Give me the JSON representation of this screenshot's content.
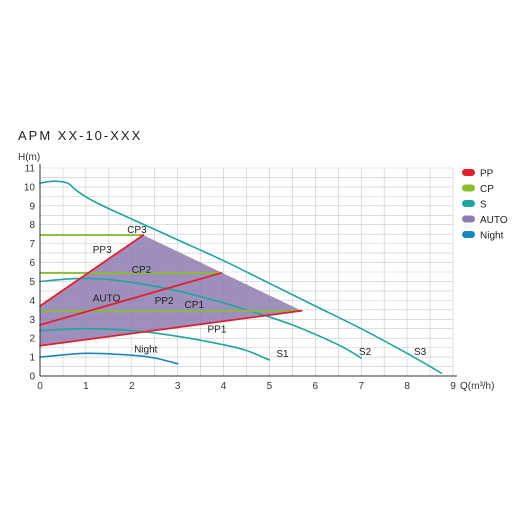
{
  "chart_data": {
    "type": "line",
    "title": "APM XX-10-XXX",
    "ylabel": "H(m)",
    "xlabel": "Q(m³/h)",
    "xlim": [
      0,
      9
    ],
    "ylim": [
      0,
      11
    ],
    "x_ticks": [
      "0",
      "1",
      "2",
      "3",
      "4",
      "5",
      "6",
      "7",
      "8",
      "9"
    ],
    "y_ticks": [
      "0",
      "1",
      "2",
      "3",
      "4",
      "5",
      "6",
      "7",
      "8",
      "9",
      "10",
      "11"
    ],
    "grid": true,
    "legend_position": "right",
    "colors": {
      "PP": "#e0202e",
      "CP": "#8cbd2e",
      "S": "#1fa5a0",
      "AUTO": "#8e7bb0",
      "Night": "#1a86bf"
    },
    "legend": [
      {
        "key": "PP",
        "label": "PP"
      },
      {
        "key": "CP",
        "label": "CP"
      },
      {
        "key": "S",
        "label": "S"
      },
      {
        "key": "AUTO",
        "label": "AUTO"
      },
      {
        "key": "Night",
        "label": "Night"
      }
    ],
    "auto_area": {
      "label": "AUTO",
      "points": [
        [
          0,
          3.7
        ],
        [
          2.25,
          7.45
        ],
        [
          5.7,
          3.45
        ],
        [
          0,
          1.6
        ]
      ]
    },
    "series": [
      {
        "name": "S3",
        "group": "S",
        "points": [
          [
            0,
            10.2
          ],
          [
            0.3,
            10.3
          ],
          [
            0.6,
            10.2
          ],
          [
            0.8,
            9.8
          ],
          [
            1.2,
            9.2
          ],
          [
            2,
            8.3
          ],
          [
            3,
            7.2
          ],
          [
            4,
            6.1
          ],
          [
            5,
            4.9
          ],
          [
            6,
            3.7
          ],
          [
            7,
            2.5
          ],
          [
            8,
            1.2
          ],
          [
            8.75,
            0.15
          ]
        ]
      },
      {
        "name": "S2",
        "group": "S",
        "points": [
          [
            0,
            5.0
          ],
          [
            0.8,
            5.15
          ],
          [
            1.5,
            5.1
          ],
          [
            2.5,
            4.75
          ],
          [
            3.5,
            4.2
          ],
          [
            4.5,
            3.5
          ],
          [
            5.5,
            2.7
          ],
          [
            6.5,
            1.65
          ],
          [
            7.0,
            0.95
          ]
        ]
      },
      {
        "name": "S1",
        "group": "S",
        "points": [
          [
            0,
            2.4
          ],
          [
            1,
            2.5
          ],
          [
            2,
            2.4
          ],
          [
            3,
            2.1
          ],
          [
            4,
            1.65
          ],
          [
            4.5,
            1.35
          ],
          [
            5.0,
            0.85
          ]
        ]
      },
      {
        "name": "Night",
        "group": "Night",
        "points": [
          [
            0,
            1.0
          ],
          [
            1,
            1.2
          ],
          [
            2,
            1.1
          ],
          [
            2.5,
            0.95
          ],
          [
            3,
            0.65
          ]
        ]
      },
      {
        "name": "CP3",
        "group": "CP",
        "points": [
          [
            0,
            7.45
          ],
          [
            2.25,
            7.45
          ]
        ]
      },
      {
        "name": "CP2",
        "group": "CP",
        "points": [
          [
            0,
            5.45
          ],
          [
            3.9,
            5.45
          ]
        ]
      },
      {
        "name": "CP1",
        "group": "CP",
        "points": [
          [
            0,
            3.45
          ],
          [
            5.7,
            3.45
          ]
        ]
      },
      {
        "name": "PP3",
        "group": "PP",
        "points": [
          [
            0,
            3.7
          ],
          [
            2.25,
            7.45
          ]
        ]
      },
      {
        "name": "PP2",
        "group": "PP",
        "points": [
          [
            0,
            2.7
          ],
          [
            3.95,
            5.45
          ]
        ]
      },
      {
        "name": "PP1",
        "group": "PP",
        "points": [
          [
            0,
            1.6
          ],
          [
            5.7,
            3.45
          ]
        ]
      }
    ],
    "annotations": [
      {
        "text": "CP3",
        "x": 1.9,
        "y": 7.55
      },
      {
        "text": "PP3",
        "x": 1.15,
        "y": 6.5
      },
      {
        "text": "CP2",
        "x": 2.0,
        "y": 5.45
      },
      {
        "text": "AUTO",
        "x": 1.15,
        "y": 3.95
      },
      {
        "text": "PP2",
        "x": 2.5,
        "y": 3.8
      },
      {
        "text": "CP1",
        "x": 3.15,
        "y": 3.6
      },
      {
        "text": "PP1",
        "x": 3.65,
        "y": 2.3
      },
      {
        "text": "Night",
        "x": 2.05,
        "y": 1.25
      },
      {
        "text": "S1",
        "x": 5.15,
        "y": 1.0
      },
      {
        "text": "S2",
        "x": 6.95,
        "y": 1.1
      },
      {
        "text": "S3",
        "x": 8.15,
        "y": 1.1
      }
    ]
  }
}
